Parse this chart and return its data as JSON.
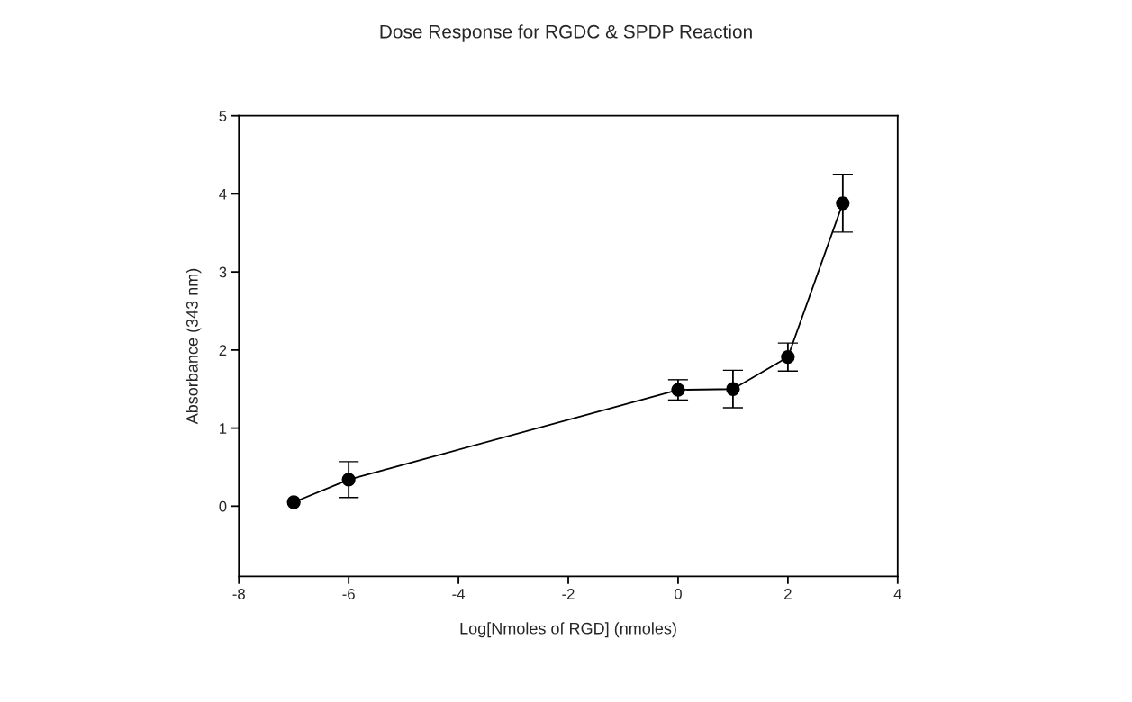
{
  "chart_data": {
    "type": "line",
    "title": "Dose Response for RGDC & SPDP Reaction",
    "xlabel": "Log[Nmoles of RGD] (nmoles)",
    "ylabel": "Absorbance (343 nm)",
    "x": [
      -7,
      -6,
      0,
      1,
      2,
      3
    ],
    "series": [
      {
        "color": "#000000",
        "values": [
          0.05,
          0.34,
          1.49,
          1.5,
          1.91,
          3.88
        ],
        "errors": [
          null,
          0.23,
          0.13,
          0.24,
          0.18,
          0.37
        ]
      }
    ],
    "xlim": [
      -8,
      4
    ],
    "xticks": [
      -8,
      -6,
      -4,
      -2,
      0,
      2,
      4
    ],
    "ylim": [
      -0.9,
      5
    ],
    "yticks": [
      0,
      1,
      2,
      3,
      4,
      5
    ],
    "marker": "circle",
    "line_style": "solid",
    "grid": false,
    "legend": false
  }
}
